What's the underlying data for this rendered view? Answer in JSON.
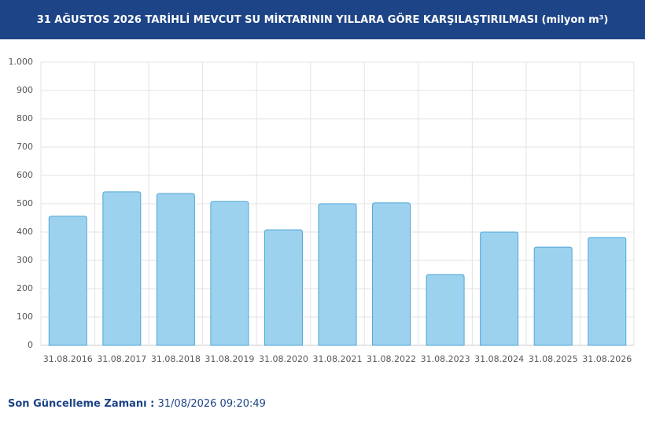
{
  "header": {
    "title": "31 AĞUSTOS 2026 TARİHLİ MEVCUT SU MİKTARININ YILLARA GÖRE KARŞILAŞTIRILMASI (milyon m³)"
  },
  "chart_data": {
    "type": "bar",
    "categories": [
      "31.08.2016",
      "31.08.2017",
      "31.08.2018",
      "31.08.2019",
      "31.08.2020",
      "31.08.2021",
      "31.08.2022",
      "31.08.2023",
      "31.08.2024",
      "31.08.2025",
      "31.08.2026"
    ],
    "values": [
      456,
      542,
      536,
      508,
      408,
      500,
      503,
      250,
      400,
      347,
      381
    ],
    "color": "#9dd2ef",
    "ylim": [
      0,
      1000
    ],
    "yticks": [
      0,
      100,
      200,
      300,
      400,
      500,
      600,
      700,
      800,
      900,
      {
        "value": 1000,
        "label": "1.000"
      }
    ],
    "grid": true
  },
  "footer": {
    "label": "Son Güncelleme Zamanı :",
    "value": "31/08/2026 09:20:49"
  }
}
